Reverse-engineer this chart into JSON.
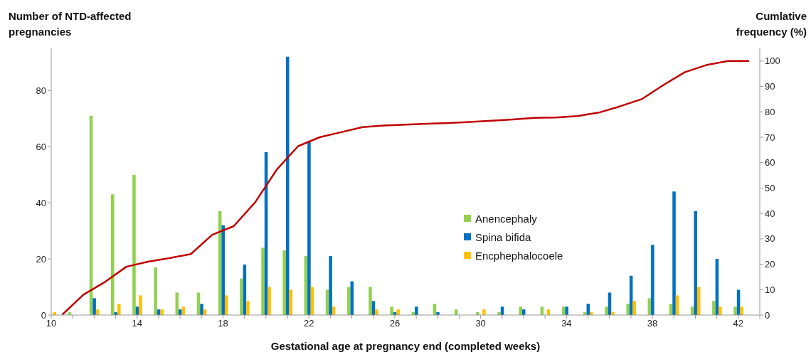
{
  "chart_data": {
    "type": "bar",
    "ylabel": "Number of NTD-affected pregnancies",
    "y2label": "Cumlative frequency (%)",
    "xlabel": "Gestational age at pregnancy end (completed weeks)",
    "x": [
      10,
      11,
      12,
      13,
      14,
      15,
      16,
      17,
      18,
      19,
      20,
      21,
      22,
      23,
      24,
      25,
      26,
      27,
      28,
      29,
      30,
      31,
      32,
      33,
      34,
      35,
      36,
      37,
      38,
      39,
      40,
      41,
      42
    ],
    "series": [
      {
        "name": "Anencephaly",
        "color": "#92d050",
        "values": [
          null,
          1,
          71,
          43,
          50,
          17,
          8,
          8,
          37,
          13,
          24,
          23,
          21,
          9,
          10,
          10,
          3,
          1,
          4,
          2,
          1,
          1,
          3,
          3,
          3,
          1,
          3,
          4,
          6,
          4,
          3,
          5,
          3
        ]
      },
      {
        "name": "Spina bifida",
        "color": "#0070c0",
        "values": [
          null,
          0,
          6,
          1,
          3,
          2,
          2,
          4,
          32,
          18,
          58,
          92,
          62,
          21,
          12,
          5,
          1,
          3,
          1,
          0,
          0,
          3,
          2,
          0,
          3,
          4,
          8,
          14,
          25,
          44,
          37,
          20,
          9
        ]
      },
      {
        "name": "Encphephalocoele",
        "color": "#ffc000",
        "values": [
          1,
          0,
          2,
          4,
          7,
          2,
          3,
          2,
          7,
          5,
          10,
          9,
          10,
          3,
          0,
          2,
          2,
          0,
          0,
          0,
          2,
          0,
          0,
          2,
          0,
          1,
          1,
          5,
          0,
          7,
          10,
          3,
          3
        ]
      },
      {
        "type": "line",
        "axis": "y2",
        "color": "#c00000",
        "x": [
          10.5,
          11.5,
          12.5,
          13.5,
          14.5,
          15.5,
          16.5,
          17.5,
          18.5,
          19.5,
          20.5,
          21.5,
          22.5,
          23.5,
          24.5,
          25.5,
          26.5,
          27.5,
          28.5,
          29.5,
          30.5,
          31.5,
          32.5,
          33.5,
          34.5,
          35.5,
          36.5,
          37.5,
          38.5,
          39.5,
          40.5,
          41.5,
          42.5
        ],
        "values": [
          0,
          8,
          13,
          19,
          21,
          22.4,
          24,
          31.6,
          35,
          44.4,
          57.2,
          66.5,
          70,
          72,
          74,
          74.6,
          75,
          75.3,
          75.6,
          76,
          76.5,
          77,
          77.6,
          77.8,
          78.3,
          79.7,
          82.2,
          85,
          90.5,
          95.6,
          98.4,
          100,
          100
        ]
      }
    ],
    "xlim": [
      10,
      43
    ],
    "xticks": [
      10,
      {
        "value": 11,
        "label": null
      },
      {
        "value": 12,
        "label": null
      },
      {
        "value": 13,
        "label": null
      },
      14,
      {
        "value": 15,
        "label": null
      },
      {
        "value": 16,
        "label": null
      },
      {
        "value": 17,
        "label": null
      },
      18,
      {
        "value": 19,
        "label": null
      },
      {
        "value": 20,
        "label": null
      },
      {
        "value": 21,
        "label": null
      },
      22,
      {
        "value": 23,
        "label": null
      },
      {
        "value": 24,
        "label": null
      },
      {
        "value": 25,
        "label": null
      },
      26,
      {
        "value": 27,
        "label": null
      },
      {
        "value": 28,
        "label": null
      },
      {
        "value": 29,
        "label": null
      },
      30,
      {
        "value": 31,
        "label": null
      },
      {
        "value": 32,
        "label": null
      },
      {
        "value": 33,
        "label": null
      },
      34,
      {
        "value": 35,
        "label": null
      },
      {
        "value": 36,
        "label": null
      },
      {
        "value": 37,
        "label": null
      },
      38,
      {
        "value": 39,
        "label": null
      },
      {
        "value": 40,
        "label": null
      },
      {
        "value": 41,
        "label": null
      },
      42,
      {
        "value": 43,
        "label": null
      }
    ],
    "ylim": [
      0,
      95
    ],
    "yticks": [
      0,
      20,
      40,
      60,
      80
    ],
    "y2lim": [
      0,
      105
    ],
    "y2ticks": [
      0,
      10,
      20,
      30,
      40,
      50,
      60,
      70,
      80,
      90,
      100
    ],
    "grid": false,
    "legend": "center"
  }
}
